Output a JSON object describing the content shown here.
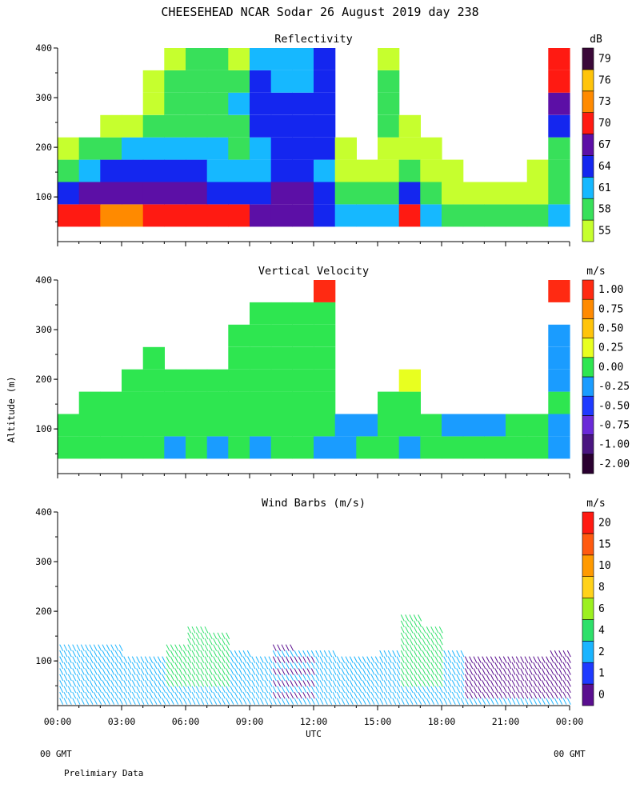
{
  "title": "CHEESEHEAD  NCAR Sodar  26 August 2019  day 238",
  "y_axis_label": "Altitude (m)",
  "x_axis_label": "UTC",
  "x_tick_labels": [
    "00:00",
    "03:00",
    "06:00",
    "09:00",
    "12:00",
    "15:00",
    "18:00",
    "21:00",
    "00:00"
  ],
  "footer": {
    "left_gmt": "00 GMT",
    "right_gmt": "00 GMT",
    "note": "Prelimiary Data"
  },
  "chart_data": [
    {
      "type": "heatmap",
      "title": "Reflectivity",
      "xlabel": "",
      "ylabel": "Altitude (m)",
      "xlim": [
        0,
        24
      ],
      "ylim": [
        10,
        400
      ],
      "y_ticks": [
        100,
        200,
        300,
        400
      ],
      "colorbar": {
        "unit": "dB",
        "levels": [
          "55",
          "58",
          "61",
          "64",
          "67",
          "70",
          "73",
          "76",
          "79"
        ],
        "colors": [
          "#c6ff2e",
          "#38e05a",
          "#16b8ff",
          "#1426ef",
          "#5c0fa6",
          "#ff1a12",
          "#ff8a00",
          "#ffc40a",
          "#3a0838"
        ]
      },
      "hour_profiles_dB": [
        [
          0,
          70,
          64,
          58,
          55,
          null,
          null,
          null,
          null
        ],
        [
          1,
          70,
          67,
          61,
          58,
          null,
          null,
          null,
          null
        ],
        [
          2,
          73,
          67,
          64,
          58,
          55,
          null,
          null,
          null
        ],
        [
          3,
          73,
          67,
          64,
          61,
          55,
          null,
          null,
          null
        ],
        [
          4,
          70,
          67,
          64,
          61,
          58,
          55,
          55,
          null
        ],
        [
          5,
          70,
          67,
          64,
          61,
          58,
          58,
          58,
          55
        ],
        [
          6,
          70,
          67,
          64,
          61,
          58,
          58,
          58,
          58
        ],
        [
          7,
          70,
          64,
          61,
          61,
          58,
          58,
          58,
          58
        ],
        [
          8,
          70,
          64,
          61,
          58,
          58,
          61,
          58,
          55
        ],
        [
          9,
          67,
          64,
          61,
          61,
          64,
          64,
          64,
          61
        ],
        [
          10,
          67,
          67,
          64,
          64,
          64,
          64,
          61,
          61
        ],
        [
          11,
          67,
          67,
          64,
          64,
          64,
          64,
          61,
          61
        ],
        [
          12,
          64,
          64,
          61,
          64,
          64,
          64,
          64,
          64
        ],
        [
          13,
          61,
          58,
          55,
          55,
          null,
          null,
          null,
          null
        ],
        [
          14,
          61,
          58,
          55,
          null,
          null,
          null,
          null,
          null
        ],
        [
          15,
          61,
          58,
          55,
          55,
          58,
          58,
          58,
          55
        ],
        [
          16,
          70,
          64,
          58,
          55,
          55,
          null,
          null,
          null
        ],
        [
          17,
          61,
          58,
          55,
          55,
          null,
          null,
          null,
          null
        ],
        [
          18,
          58,
          55,
          55,
          null,
          null,
          null,
          null,
          null
        ],
        [
          19,
          58,
          55,
          null,
          null,
          null,
          null,
          null,
          null
        ],
        [
          20,
          58,
          55,
          null,
          null,
          null,
          null,
          null,
          null
        ],
        [
          21,
          58,
          55,
          null,
          null,
          null,
          null,
          null,
          null
        ],
        [
          22,
          58,
          55,
          55,
          null,
          null,
          null,
          null,
          null
        ],
        [
          23,
          61,
          58,
          58,
          58,
          64,
          67,
          70,
          70
        ]
      ]
    },
    {
      "type": "heatmap",
      "title": "Vertical Velocity",
      "xlabel": "",
      "ylabel": "Altitude (m)",
      "xlim": [
        0,
        24
      ],
      "ylim": [
        10,
        400
      ],
      "y_ticks": [
        100,
        200,
        300,
        400
      ],
      "colorbar": {
        "unit": "m/s",
        "levels": [
          "-2.00",
          "-1.00",
          "-0.75",
          "-0.50",
          "-0.25",
          "0.00",
          "0.25",
          "0.50",
          "0.75",
          "1.00"
        ],
        "colors": [
          "#2a0030",
          "#4a1580",
          "#6a2ad8",
          "#1e3aff",
          "#1a9cff",
          "#2ee650",
          "#e8ff20",
          "#ffc40a",
          "#ff8a00",
          "#ff2a12"
        ]
      },
      "hour_profiles_ms": [
        [
          0,
          0.0,
          0.0,
          null,
          null,
          null,
          null,
          null,
          null
        ],
        [
          1,
          0.0,
          0.0,
          0.0,
          null,
          null,
          null,
          null,
          null
        ],
        [
          2,
          0.0,
          0.0,
          0.0,
          null,
          null,
          null,
          null,
          null
        ],
        [
          3,
          0.0,
          0.0,
          0.0,
          0.0,
          null,
          null,
          null,
          null
        ],
        [
          4,
          0.0,
          0.0,
          0.0,
          0.0,
          0.0,
          null,
          null,
          null
        ],
        [
          5,
          -0.25,
          0.0,
          0.0,
          0.0,
          null,
          null,
          null,
          null
        ],
        [
          6,
          0.0,
          0.0,
          0.0,
          0.0,
          null,
          null,
          null,
          null
        ],
        [
          7,
          -0.25,
          0.0,
          0.0,
          0.0,
          null,
          null,
          null,
          null
        ],
        [
          8,
          0.0,
          0.0,
          0.0,
          0.0,
          0.0,
          0.0,
          null,
          null
        ],
        [
          9,
          -0.25,
          0.0,
          0.0,
          0.0,
          0.0,
          0.0,
          0.0,
          null
        ],
        [
          10,
          0.0,
          0.0,
          0.0,
          0.0,
          0.0,
          0.0,
          0.0,
          null
        ],
        [
          11,
          0.0,
          0.0,
          0.0,
          0.0,
          0.0,
          0.0,
          0.0,
          null
        ],
        [
          12,
          -0.25,
          0.0,
          0.0,
          0.0,
          0.0,
          0.0,
          0.0,
          1.0
        ],
        [
          13,
          -0.25,
          -0.25,
          null,
          null,
          null,
          null,
          null,
          null
        ],
        [
          14,
          0.0,
          -0.25,
          null,
          null,
          null,
          null,
          null,
          null
        ],
        [
          15,
          0.0,
          0.0,
          0.0,
          null,
          null,
          null,
          null,
          null
        ],
        [
          16,
          -0.25,
          0.0,
          0.0,
          0.25,
          null,
          null,
          null,
          null
        ],
        [
          17,
          0.0,
          0.0,
          null,
          null,
          null,
          null,
          null,
          null
        ],
        [
          18,
          0.0,
          -0.25,
          null,
          null,
          null,
          null,
          null,
          null
        ],
        [
          19,
          0.0,
          -0.25,
          null,
          null,
          null,
          null,
          null,
          null
        ],
        [
          20,
          0.0,
          -0.25,
          null,
          null,
          null,
          null,
          null,
          null
        ],
        [
          21,
          0.0,
          0.0,
          null,
          null,
          null,
          null,
          null,
          null
        ],
        [
          22,
          0.0,
          0.0,
          null,
          null,
          null,
          null,
          null,
          null
        ],
        [
          23,
          -0.25,
          -0.25,
          0.0,
          -0.25,
          -0.25,
          -0.25,
          null,
          1.0
        ]
      ]
    },
    {
      "type": "scatter",
      "title": "Wind Barbs (m/s)",
      "xlabel": "UTC",
      "ylabel": "Altitude (m)",
      "xlim": [
        0,
        24
      ],
      "ylim": [
        10,
        400
      ],
      "y_ticks": [
        100,
        200,
        300,
        400
      ],
      "colorbar": {
        "unit": "m/s",
        "levels": [
          "0",
          "1",
          "2",
          "4",
          "6",
          "8",
          "10",
          "15",
          "20"
        ],
        "colors": [
          "#5a0f8f",
          "#1e3aff",
          "#1ab4ff",
          "#2ee06a",
          "#9cf020",
          "#ffd21a",
          "#ff9a00",
          "#ff5a10",
          "#ff1a12"
        ]
      },
      "hour_top_alt_m": [
        140,
        140,
        140,
        120,
        110,
        140,
        180,
        160,
        130,
        120,
        140,
        130,
        130,
        120,
        120,
        130,
        200,
        180,
        130,
        120,
        120,
        110,
        120,
        130
      ]
    }
  ]
}
